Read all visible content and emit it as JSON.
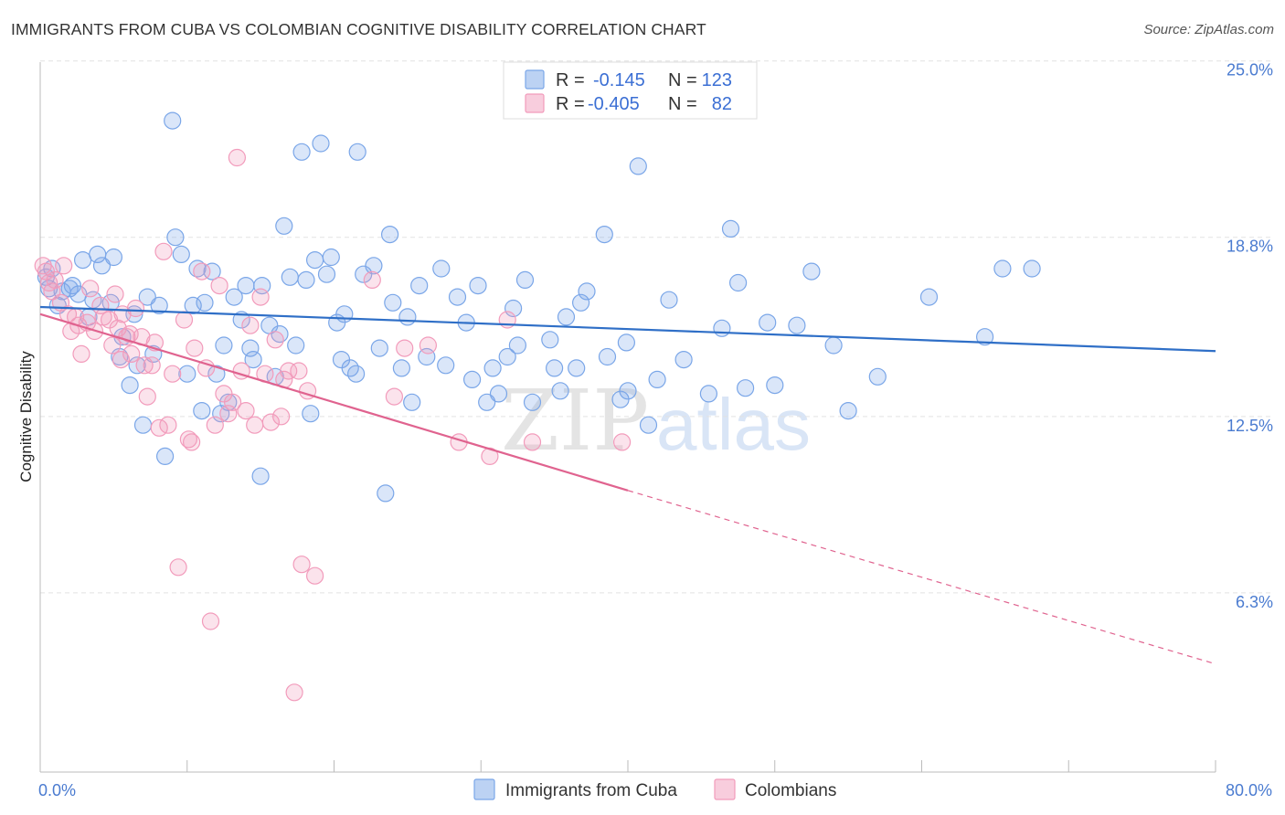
{
  "title": "IMMIGRANTS FROM CUBA VS COLOMBIAN COGNITIVE DISABILITY CORRELATION CHART",
  "source": "Source: ZipAtlas.com",
  "watermark": {
    "zip": "ZIP",
    "atlas": "atlas"
  },
  "chart_data": {
    "type": "scatter",
    "ylabel": "Cognitive Disability",
    "xlim": [
      0,
      80
    ],
    "ylim": [
      0,
      26.5
    ],
    "x_tick_labels": [
      {
        "value": 0,
        "label": "0.0%"
      },
      {
        "value": 80,
        "label": "80.0%"
      }
    ],
    "y_ticks": [
      {
        "value": 6.3,
        "label": "6.3%"
      },
      {
        "value": 12.5,
        "label": "12.5%"
      },
      {
        "value": 18.8,
        "label": "18.8%"
      },
      {
        "value": 25.0,
        "label": "25.0%"
      }
    ],
    "grid": "dashed horizontal",
    "legend_placement": "top-center",
    "legend": [
      {
        "r_label": "R =",
        "r_value": "-0.145",
        "n_label": "N =",
        "n_value": "123",
        "color": "#7aa6e8"
      },
      {
        "r_label": "R =",
        "r_value": "-0.405",
        "n_label": "N =",
        "n_value": "82",
        "color": "#f29bbb"
      }
    ],
    "series": [
      {
        "name": "Immigrants from Cuba",
        "color": "#7aa6e8",
        "line_color": "#2f6fc7",
        "trend": {
          "x0": 0,
          "y0": 16.35,
          "x1": 80,
          "y1": 14.8
        },
        "points": [
          [
            0.4,
            17.4
          ],
          [
            0.6,
            17.0
          ],
          [
            0.8,
            17.7
          ],
          [
            1.2,
            16.4
          ],
          [
            1.5,
            16.9
          ],
          [
            2.0,
            17.0
          ],
          [
            2.2,
            17.1
          ],
          [
            2.6,
            16.8
          ],
          [
            2.9,
            18.0
          ],
          [
            3.3,
            16.0
          ],
          [
            3.6,
            16.6
          ],
          [
            3.9,
            18.2
          ],
          [
            4.2,
            17.8
          ],
          [
            4.8,
            16.5
          ],
          [
            5.0,
            18.1
          ],
          [
            5.4,
            14.6
          ],
          [
            5.6,
            15.3
          ],
          [
            6.1,
            13.6
          ],
          [
            6.4,
            16.1
          ],
          [
            6.6,
            14.3
          ],
          [
            7.0,
            12.2
          ],
          [
            7.3,
            16.7
          ],
          [
            7.7,
            14.7
          ],
          [
            8.1,
            16.4
          ],
          [
            8.5,
            11.1
          ],
          [
            9.0,
            22.9
          ],
          [
            9.2,
            18.8
          ],
          [
            9.6,
            18.2
          ],
          [
            10.0,
            14.0
          ],
          [
            10.4,
            16.4
          ],
          [
            10.7,
            17.7
          ],
          [
            11.0,
            12.7
          ],
          [
            11.2,
            16.5
          ],
          [
            11.7,
            17.6
          ],
          [
            12.0,
            14.0
          ],
          [
            12.3,
            12.6
          ],
          [
            12.5,
            15.0
          ],
          [
            12.8,
            13.0
          ],
          [
            13.2,
            16.7
          ],
          [
            13.7,
            15.9
          ],
          [
            14.0,
            17.1
          ],
          [
            14.3,
            14.9
          ],
          [
            14.5,
            14.5
          ],
          [
            15.1,
            17.1
          ],
          [
            15.0,
            10.4
          ],
          [
            15.6,
            15.7
          ],
          [
            16.0,
            13.9
          ],
          [
            16.3,
            15.4
          ],
          [
            16.6,
            19.2
          ],
          [
            17.0,
            17.4
          ],
          [
            17.4,
            15.0
          ],
          [
            17.8,
            21.8
          ],
          [
            18.1,
            17.3
          ],
          [
            18.4,
            12.6
          ],
          [
            18.7,
            18.0
          ],
          [
            19.1,
            22.1
          ],
          [
            19.5,
            17.5
          ],
          [
            19.8,
            18.1
          ],
          [
            20.2,
            15.8
          ],
          [
            20.5,
            14.5
          ],
          [
            20.7,
            16.1
          ],
          [
            21.1,
            14.2
          ],
          [
            21.5,
            14.0
          ],
          [
            21.6,
            21.8
          ],
          [
            22.0,
            17.5
          ],
          [
            22.7,
            17.8
          ],
          [
            23.1,
            14.9
          ],
          [
            23.5,
            9.8
          ],
          [
            23.8,
            18.9
          ],
          [
            24.0,
            16.5
          ],
          [
            24.6,
            14.2
          ],
          [
            25.0,
            16.0
          ],
          [
            25.3,
            13.0
          ],
          [
            25.8,
            17.1
          ],
          [
            26.3,
            14.6
          ],
          [
            27.3,
            17.7
          ],
          [
            27.6,
            14.3
          ],
          [
            28.4,
            16.7
          ],
          [
            29.0,
            15.8
          ],
          [
            29.4,
            13.8
          ],
          [
            29.8,
            17.1
          ],
          [
            30.8,
            14.2
          ],
          [
            30.4,
            13.0
          ],
          [
            31.2,
            13.3
          ],
          [
            31.8,
            14.6
          ],
          [
            32.2,
            16.3
          ],
          [
            32.5,
            15.0
          ],
          [
            33.0,
            17.3
          ],
          [
            33.5,
            13.0
          ],
          [
            34.7,
            15.2
          ],
          [
            35.0,
            14.2
          ],
          [
            35.4,
            13.4
          ],
          [
            35.8,
            16.0
          ],
          [
            36.5,
            14.2
          ],
          [
            36.8,
            16.5
          ],
          [
            37.2,
            16.9
          ],
          [
            38.4,
            18.9
          ],
          [
            38.6,
            14.6
          ],
          [
            39.5,
            13.1
          ],
          [
            39.9,
            15.1
          ],
          [
            40.0,
            13.4
          ],
          [
            40.7,
            21.3
          ],
          [
            41.4,
            12.2
          ],
          [
            42.0,
            13.8
          ],
          [
            42.8,
            16.6
          ],
          [
            43.8,
            14.5
          ],
          [
            45.5,
            13.3
          ],
          [
            46.4,
            15.6
          ],
          [
            47.5,
            17.2
          ],
          [
            47.0,
            19.1
          ],
          [
            48.0,
            13.5
          ],
          [
            49.5,
            15.8
          ],
          [
            50.0,
            13.6
          ],
          [
            51.5,
            15.7
          ],
          [
            52.5,
            17.6
          ],
          [
            54.0,
            15.0
          ],
          [
            55.0,
            12.7
          ],
          [
            57.0,
            13.9
          ],
          [
            60.5,
            16.7
          ],
          [
            64.3,
            15.3
          ],
          [
            65.5,
            17.7
          ],
          [
            67.5,
            17.7
          ]
        ]
      },
      {
        "name": "Colombians",
        "color": "#f29bbb",
        "line_color": "#e0638f",
        "trend": {
          "x0": 0,
          "y0": 16.1,
          "x1": 40,
          "y1": 9.9
        },
        "trend_dashed": {
          "x0": 40,
          "y0": 9.9,
          "x1": 80,
          "y1": 3.8
        },
        "points": [
          [
            0.2,
            17.8
          ],
          [
            0.4,
            17.6
          ],
          [
            0.6,
            17.2
          ],
          [
            0.8,
            16.9
          ],
          [
            1.0,
            17.3
          ],
          [
            1.4,
            16.5
          ],
          [
            1.6,
            17.8
          ],
          [
            1.9,
            16.1
          ],
          [
            2.1,
            15.5
          ],
          [
            2.4,
            16.0
          ],
          [
            2.6,
            15.7
          ],
          [
            2.8,
            14.7
          ],
          [
            3.2,
            15.8
          ],
          [
            3.4,
            17.0
          ],
          [
            3.7,
            15.5
          ],
          [
            4.1,
            16.4
          ],
          [
            4.3,
            16.0
          ],
          [
            4.7,
            15.9
          ],
          [
            4.9,
            15.0
          ],
          [
            5.1,
            16.8
          ],
          [
            5.3,
            15.6
          ],
          [
            5.5,
            14.5
          ],
          [
            5.6,
            16.1
          ],
          [
            5.9,
            15.3
          ],
          [
            6.1,
            15.4
          ],
          [
            6.2,
            14.7
          ],
          [
            6.5,
            16.3
          ],
          [
            6.9,
            15.3
          ],
          [
            7.1,
            14.3
          ],
          [
            7.3,
            13.2
          ],
          [
            7.6,
            14.3
          ],
          [
            7.8,
            15.1
          ],
          [
            8.1,
            12.1
          ],
          [
            8.4,
            18.3
          ],
          [
            8.7,
            12.2
          ],
          [
            9.0,
            14.0
          ],
          [
            9.4,
            7.2
          ],
          [
            9.8,
            15.9
          ],
          [
            10.1,
            11.7
          ],
          [
            10.3,
            11.6
          ],
          [
            10.5,
            14.9
          ],
          [
            11.0,
            17.6
          ],
          [
            11.3,
            14.2
          ],
          [
            11.6,
            5.3
          ],
          [
            11.9,
            12.2
          ],
          [
            12.2,
            17.1
          ],
          [
            12.5,
            13.3
          ],
          [
            12.8,
            12.6
          ],
          [
            13.1,
            13.0
          ],
          [
            13.4,
            21.6
          ],
          [
            13.7,
            14.1
          ],
          [
            14.0,
            12.7
          ],
          [
            14.3,
            15.7
          ],
          [
            14.6,
            12.2
          ],
          [
            15.0,
            16.7
          ],
          [
            15.3,
            14.0
          ],
          [
            15.7,
            12.3
          ],
          [
            16.0,
            15.2
          ],
          [
            16.4,
            12.5
          ],
          [
            16.6,
            13.8
          ],
          [
            16.9,
            14.1
          ],
          [
            17.3,
            2.8
          ],
          [
            17.6,
            14.1
          ],
          [
            17.8,
            7.3
          ],
          [
            18.2,
            13.4
          ],
          [
            18.7,
            6.9
          ],
          [
            22.6,
            17.3
          ],
          [
            24.1,
            13.2
          ],
          [
            24.8,
            14.9
          ],
          [
            26.4,
            15.0
          ],
          [
            28.5,
            11.6
          ],
          [
            30.6,
            11.1
          ],
          [
            31.8,
            15.9
          ],
          [
            33.5,
            11.6
          ],
          [
            39.6,
            11.6
          ]
        ]
      }
    ]
  }
}
